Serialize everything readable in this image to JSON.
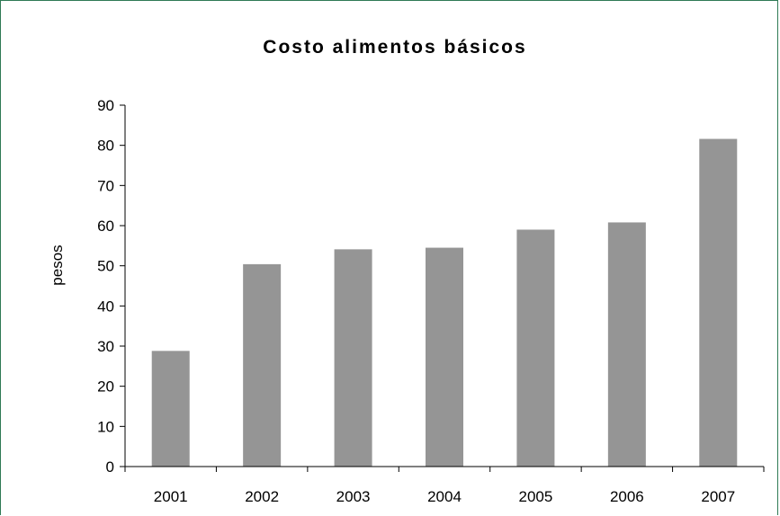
{
  "chart_data": {
    "type": "bar",
    "title": "Costo alimentos básicos",
    "xlabel": "",
    "ylabel": "pesos",
    "categories": [
      "2001",
      "2002",
      "2003",
      "2004",
      "2005",
      "2006",
      "2007"
    ],
    "values": [
      28.8,
      50.4,
      54.1,
      54.5,
      59.0,
      60.8,
      81.6
    ],
    "ylim": [
      0,
      90
    ],
    "yticks": [
      0,
      10,
      20,
      30,
      40,
      50,
      60,
      70,
      80,
      90
    ],
    "grid": false,
    "legend": "none",
    "bar_color": "#959595",
    "frame_color": "#2f7a55"
  }
}
